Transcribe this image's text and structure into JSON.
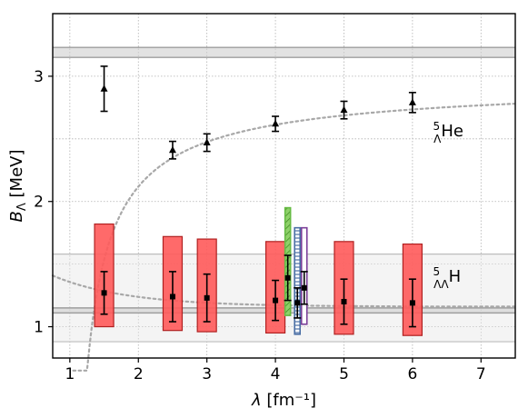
{
  "chart_data": {
    "type": "scatter",
    "xlabel": "λ [fm⁻¹]",
    "ylabel": "B_Λ [MeV]",
    "xlim": [
      0.75,
      7.5
    ],
    "ylim": [
      0.75,
      3.5
    ],
    "xticks": [
      1,
      2,
      3,
      4,
      5,
      6,
      7
    ],
    "yticks": [
      1,
      2,
      3
    ],
    "grid": true,
    "annotations": [
      {
        "text": "⁵ΛHe",
        "x": 6.3,
        "y": 2.52
      },
      {
        "text": "⁵ΛΛH",
        "x": 6.3,
        "y": 1.36
      }
    ],
    "reference_bands": [
      {
        "name": "He5L",
        "center": 3.19,
        "low": 3.15,
        "high": 3.23
      },
      {
        "name": "H5LL",
        "center": 1.13,
        "low": 1.11,
        "high": 1.15,
        "wide_low": 0.88,
        "wide_high": 1.58
      }
    ],
    "series": [
      {
        "marker": "triangle",
        "x": [
          1.5,
          2.5,
          3.0,
          4.0,
          5.0,
          6.0
        ],
        "y": [
          2.9,
          2.41,
          2.47,
          2.62,
          2.73,
          2.79
        ],
        "err": [
          0.18,
          0.07,
          0.07,
          0.06,
          0.07,
          0.08
        ]
      },
      {
        "marker": "square",
        "x": [
          1.5,
          2.5,
          3.0,
          4.0,
          5.0,
          6.0
        ],
        "y": [
          1.27,
          1.24,
          1.23,
          1.21,
          1.2,
          1.19
        ],
        "err": [
          0.17,
          0.2,
          0.19,
          0.16,
          0.18,
          0.19
        ],
        "box_low": [
          1.0,
          0.97,
          0.96,
          0.95,
          0.94,
          0.93
        ],
        "box_high": [
          1.82,
          1.72,
          1.7,
          1.68,
          1.68,
          1.66
        ]
      }
    ],
    "extra_boxes": [
      {
        "color": "#66bb44",
        "hatch": true,
        "x": 4.18,
        "low": 1.09,
        "high": 1.95,
        "y": 1.39,
        "err": 0.18
      },
      {
        "color": "#4a6fa5",
        "hatch": true,
        "x": 4.32,
        "low": 0.94,
        "high": 1.79,
        "y": 1.19,
        "err": 0.12
      },
      {
        "color": "#7b3f99",
        "hatch": false,
        "x": 4.42,
        "low": 1.02,
        "high": 1.79,
        "y": 1.31,
        "err": 0.13
      }
    ],
    "curves": [
      {
        "name": "He-fit",
        "a": 2.93,
        "b": 0.56,
        "c": 0.8
      },
      {
        "name": "H-fit",
        "a": 1.16,
        "b": 0.31,
        "c": 0.42
      }
    ]
  }
}
